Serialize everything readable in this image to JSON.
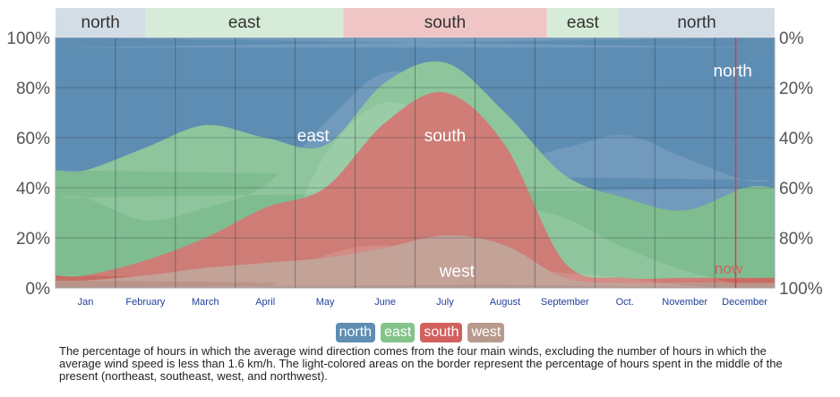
{
  "chart_data": {
    "type": "area",
    "categories": [
      "Jan",
      "February",
      "March",
      "April",
      "May",
      "June",
      "July",
      "August",
      "September",
      "Oct.",
      "November",
      "December"
    ],
    "y_left_ticks": [
      "100%",
      "80%",
      "60%",
      "40%",
      "20%",
      "0%"
    ],
    "y_right_ticks": [
      "0%",
      "20%",
      "40%",
      "60%",
      "80%",
      "100%"
    ],
    "ylim": [
      0,
      100
    ],
    "grid": true,
    "series": [
      {
        "name": "west",
        "values": [
          3,
          5,
          8,
          10,
          12,
          16,
          21,
          17,
          4,
          2,
          2,
          2
        ]
      },
      {
        "name": "south",
        "values": [
          2,
          6,
          12,
          22,
          28,
          50,
          57,
          40,
          6,
          2,
          2,
          2
        ]
      },
      {
        "name": "east",
        "values": [
          42,
          45,
          45,
          28,
          17,
          16,
          12,
          13,
          35,
          32,
          27,
          36
        ]
      },
      {
        "name": "north",
        "values": [
          53,
          44,
          35,
          40,
          43,
          18,
          10,
          30,
          55,
          64,
          69,
          60
        ]
      }
    ],
    "dominant_bands": [
      {
        "label": "north",
        "start": 0,
        "end": 1.5
      },
      {
        "label": "east",
        "start": 1.5,
        "end": 4.8
      },
      {
        "label": "south",
        "start": 4.8,
        "end": 8.2
      },
      {
        "label": "east",
        "start": 8.2,
        "end": 9.4
      },
      {
        "label": "north",
        "start": 9.4,
        "end": 12
      }
    ],
    "area_labels": [
      {
        "text": "north",
        "month": 11.3,
        "y": 87
      },
      {
        "text": "east",
        "month": 4.3,
        "y": 61
      },
      {
        "text": "south",
        "month": 6.5,
        "y": 61
      },
      {
        "text": "west",
        "month": 6.7,
        "y": 7
      }
    ],
    "now": {
      "label": "now",
      "month": 11.35
    },
    "colors": {
      "north": "#5f8db3",
      "east": "#84c48b",
      "south": "#d2605c",
      "west": "#b89a8d",
      "band_north": "#d3dde6",
      "band_east": "#d6ecd8",
      "band_south": "#efc5c5",
      "now_line": "#d44040"
    }
  },
  "legend": [
    {
      "label": "north",
      "color": "#5f8db3"
    },
    {
      "label": "east",
      "color": "#84c48b"
    },
    {
      "label": "south",
      "color": "#d2605c"
    },
    {
      "label": "west",
      "color": "#b89a8d"
    }
  ],
  "caption": "The percentage of hours in which the average wind direction comes from the four main winds, excluding the number of hours in which the average wind speed is less than 1.6 km/h. The light-colored areas on the border represent the percentage of hours spent in the middle of the present (northeast, southeast, west, and northwest)."
}
